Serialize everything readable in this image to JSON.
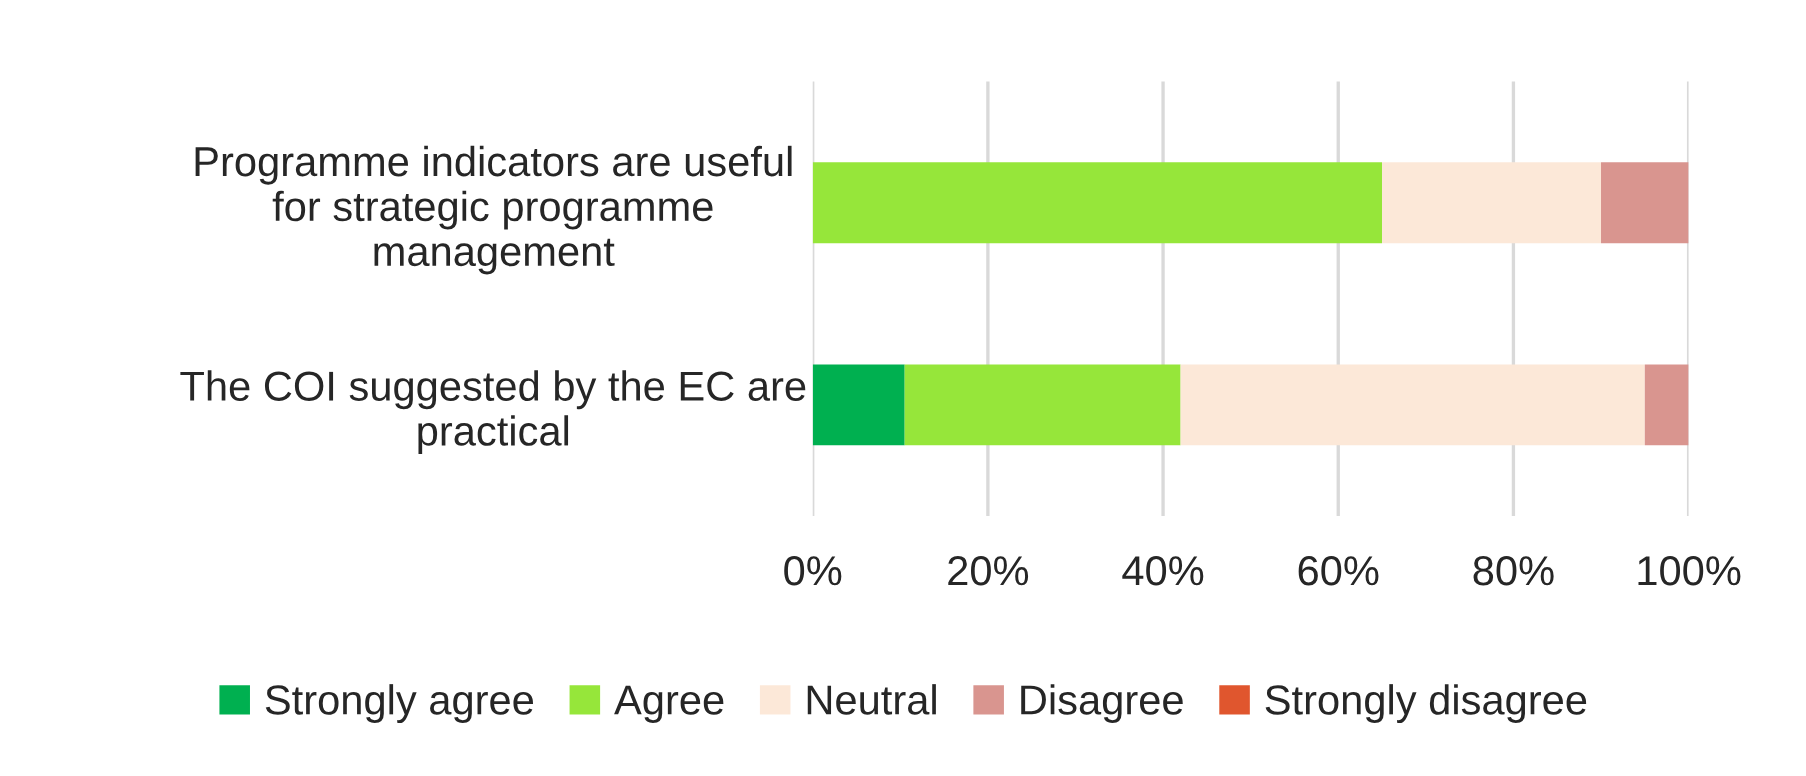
{
  "chart_data": {
    "type": "bar",
    "orientation": "horizontal",
    "stacked": true,
    "categories": [
      "Programme indicators are useful\nfor strategic programme\nmanagement",
      "The COI suggested by the EC are\npractical"
    ],
    "series": [
      {
        "name": "Strongly agree",
        "color": "#00b050",
        "values": [
          null,
          10.5
        ]
      },
      {
        "name": "Agree",
        "color": "#96e63a",
        "values": [
          65,
          31.5
        ]
      },
      {
        "name": "Neutral",
        "color": "#fce8d8",
        "values": [
          25,
          53
        ]
      },
      {
        "name": "Disagree",
        "color": "#d9958f",
        "values": [
          10,
          5
        ]
      },
      {
        "name": "Strongly disagree",
        "color": "#e0562e",
        "values": [
          null,
          null
        ]
      }
    ],
    "xlim": [
      0,
      100
    ],
    "xticks": [
      {
        "value": 0,
        "label": "0%"
      },
      {
        "value": 20,
        "label": "20%"
      },
      {
        "value": 40,
        "label": "40%"
      },
      {
        "value": 60,
        "label": "60%"
      },
      {
        "value": 80,
        "label": "80%"
      },
      {
        "value": 100,
        "label": "100%"
      }
    ],
    "grid": "x",
    "legend": "bottom"
  }
}
